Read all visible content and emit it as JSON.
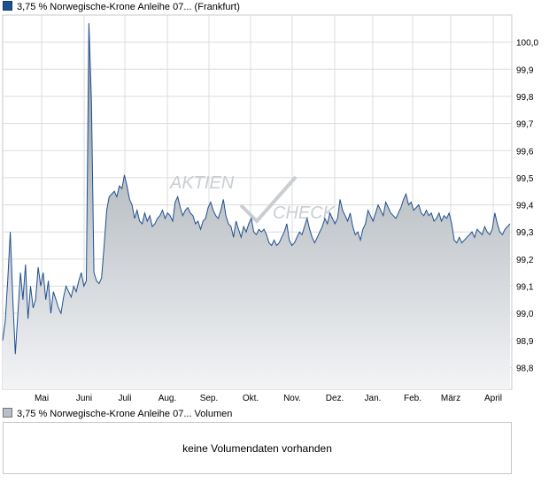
{
  "legend_top": {
    "label": "3,75 % Norwegische-Krone Anleihe 07... (Frankfurt)"
  },
  "legend_volume": {
    "label": "3,75 % Norwegische-Krone Anleihe 07... Volumen"
  },
  "volume_panel": {
    "message": "keine Volumendaten vorhanden"
  },
  "watermark": {
    "line1": "AKTIEN",
    "line2": "CHECK"
  },
  "colors": {
    "line": "#1f4f8f",
    "fill_top": "#8e979f",
    "fill_bottom": "#f3f4f6",
    "grid": "#dcdcdc",
    "border": "#c8c8c8"
  },
  "chart_data": {
    "type": "area",
    "title": "3,75 % Norwegische-Krone Anleihe 07... (Frankfurt)",
    "x_ticks": [
      "Mai",
      "Juni",
      "Juli",
      "Aug.",
      "Sep.",
      "Okt.",
      "Nov.",
      "Dez.",
      "Jan.",
      "Feb.",
      "März",
      "April"
    ],
    "y_ticks": [
      "100,0",
      "99,9",
      "99,8",
      "99,7",
      "99,6",
      "99,5",
      "99,4",
      "99,3",
      "99,2",
      "99,1",
      "99,0",
      "98,9",
      "98,8"
    ],
    "ylim": [
      98.72,
      100.1
    ],
    "grid": true,
    "y_axis_position": "right",
    "series": [
      {
        "values": [
          98.9,
          98.97,
          99.12,
          99.3,
          99.05,
          98.85,
          99.0,
          99.15,
          99.05,
          99.18,
          98.98,
          99.1,
          99.02,
          99.05,
          99.17,
          99.1,
          99.15,
          99.05,
          99.12,
          99.0,
          99.08,
          99.05,
          99.02,
          99.0,
          99.06,
          99.1,
          99.08,
          99.06,
          99.1,
          99.08,
          99.12,
          99.15,
          99.1,
          99.12,
          100.07,
          99.78,
          99.15,
          99.12,
          99.11,
          99.13,
          99.25,
          99.38,
          99.43,
          99.44,
          99.45,
          99.43,
          99.47,
          99.46,
          99.51,
          99.47,
          99.42,
          99.4,
          99.35,
          99.38,
          99.34,
          99.33,
          99.37,
          99.34,
          99.36,
          99.32,
          99.33,
          99.35,
          99.36,
          99.38,
          99.35,
          99.37,
          99.36,
          99.34,
          99.41,
          99.43,
          99.39,
          99.36,
          99.38,
          99.39,
          99.37,
          99.36,
          99.33,
          99.34,
          99.31,
          99.34,
          99.35,
          99.39,
          99.41,
          99.38,
          99.36,
          99.35,
          99.38,
          99.42,
          99.36,
          99.33,
          99.32,
          99.28,
          99.34,
          99.31,
          99.28,
          99.32,
          99.3,
          99.33,
          99.35,
          99.3,
          99.29,
          99.31,
          99.3,
          99.31,
          99.29,
          99.26,
          99.25,
          99.27,
          99.25,
          99.26,
          99.28,
          99.3,
          99.33,
          99.27,
          99.25,
          99.26,
          99.28,
          99.3,
          99.29,
          99.32,
          99.35,
          99.31,
          99.28,
          99.26,
          99.28,
          99.3,
          99.32,
          99.35,
          99.33,
          99.37,
          99.35,
          99.33,
          99.35,
          99.42,
          99.38,
          99.36,
          99.34,
          99.37,
          99.32,
          99.29,
          99.3,
          99.27,
          99.31,
          99.33,
          99.38,
          99.36,
          99.34,
          99.37,
          99.4,
          99.38,
          99.36,
          99.41,
          99.39,
          99.37,
          99.36,
          99.35,
          99.37,
          99.39,
          99.42,
          99.44,
          99.4,
          99.41,
          99.38,
          99.39,
          99.4,
          99.37,
          99.36,
          99.38,
          99.36,
          99.37,
          99.34,
          99.35,
          99.37,
          99.34,
          99.36,
          99.35,
          99.37,
          99.33,
          99.27,
          99.26,
          99.28,
          99.26,
          99.27,
          99.28,
          99.29,
          99.3,
          99.28,
          99.31,
          99.3,
          99.29,
          99.32,
          99.3,
          99.29,
          99.31,
          99.37,
          99.33,
          99.3,
          99.29,
          99.31,
          99.32,
          99.33
        ]
      }
    ]
  }
}
